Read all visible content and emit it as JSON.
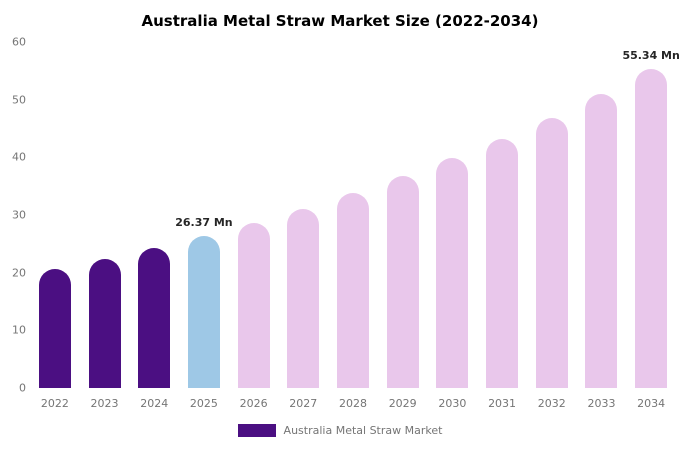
{
  "chart_data": {
    "type": "bar",
    "title": "Australia Metal Straw Market Size (2022-2034)",
    "unit": "Mn",
    "categories": [
      "2022",
      "2023",
      "2024",
      "2025",
      "2026",
      "2027",
      "2028",
      "2029",
      "2030",
      "2031",
      "2032",
      "2033",
      "2034"
    ],
    "values": [
      20.6,
      22.4,
      24.3,
      26.37,
      28.6,
      31.1,
      33.8,
      36.7,
      39.8,
      43.2,
      46.9,
      51.0,
      55.34
    ],
    "bar_colors": [
      "#4b0f82",
      "#4b0f82",
      "#4b0f82",
      "#9ec8e6",
      "#e9c7eb",
      "#e9c7eb",
      "#e9c7eb",
      "#e9c7eb",
      "#e9c7eb",
      "#e9c7eb",
      "#e9c7eb",
      "#e9c7eb",
      "#e9c7eb"
    ],
    "ylim": [
      0,
      60
    ],
    "yticks": [
      0,
      10,
      20,
      30,
      40,
      50,
      60
    ],
    "grid": false,
    "annotations": [
      {
        "category": "2025",
        "text": "26.37 Mn"
      },
      {
        "category": "2034",
        "text": "55.34 Mn"
      }
    ],
    "legend": {
      "label": "Australia Metal Straw Market",
      "swatch_color": "#4b0f82",
      "position": "bottom"
    }
  },
  "colors": {
    "historical_bars": "#4b0f82",
    "highlight_bar": "#9ec8e6",
    "forecast_bars": "#e9c7eb",
    "axis_text": "#757575",
    "annotation_text": "#262626",
    "background": "#ffffff"
  }
}
